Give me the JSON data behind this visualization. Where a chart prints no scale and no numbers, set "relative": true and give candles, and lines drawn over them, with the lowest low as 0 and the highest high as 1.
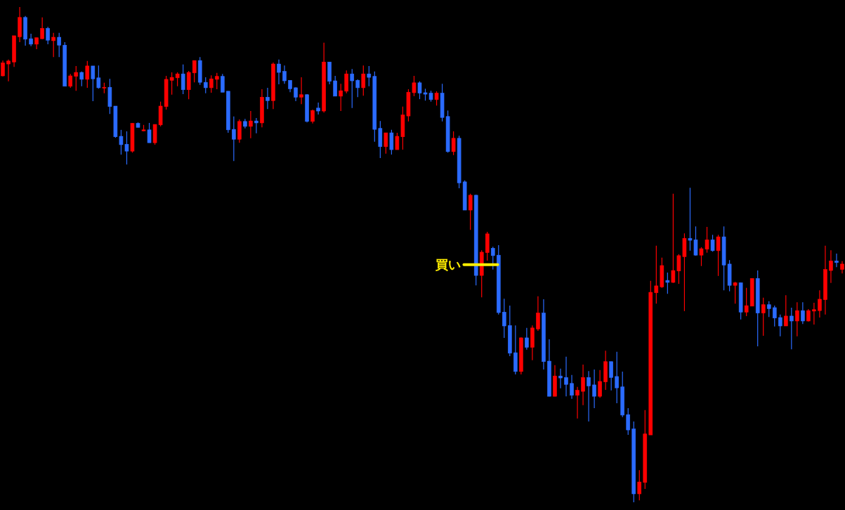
{
  "chart_data": {
    "type": "candlestick",
    "relative": true,
    "categories": [
      null,
      null,
      null,
      null,
      null,
      null,
      null,
      null,
      null,
      null,
      null,
      null,
      null,
      null,
      null,
      null,
      null,
      null,
      null,
      null,
      null,
      null,
      null,
      null,
      null,
      null,
      null,
      null,
      null,
      null,
      null,
      null,
      null,
      null,
      null,
      null,
      null,
      null,
      null,
      null,
      null,
      null,
      null,
      null,
      null,
      null,
      null,
      null,
      null,
      null,
      null,
      null,
      null,
      null,
      null,
      null,
      null,
      null,
      null,
      null,
      null,
      null,
      null,
      null,
      null,
      null,
      null,
      null,
      null,
      null,
      null,
      null,
      null,
      null,
      null,
      null,
      null,
      null,
      null,
      null,
      null,
      null,
      null,
      null,
      null,
      null,
      null,
      null,
      null,
      null,
      null,
      null,
      null,
      null,
      null,
      null,
      null,
      null,
      null,
      null,
      null,
      null,
      null,
      null,
      null,
      null,
      null,
      null,
      null,
      null,
      null,
      null,
      null,
      null,
      null,
      null,
      null,
      null,
      null,
      null,
      null,
      null,
      null,
      null,
      null,
      null,
      null,
      null,
      null,
      null,
      null,
      null,
      null,
      null,
      null,
      null,
      null,
      null,
      null,
      null,
      null,
      null,
      null,
      null,
      null,
      null,
      null,
      null,
      null,
      null
    ],
    "ohlc": [
      [
        0.861,
        0.892,
        0.86,
        0.887
      ],
      [
        0.885,
        0.894,
        0.85,
        0.891
      ],
      [
        0.889,
        0.942,
        0.879,
        0.942
      ],
      [
        0.94,
        1,
        0.929,
        0.979
      ],
      [
        0.979,
        0.982,
        0.922,
        0.935
      ],
      [
        0.936,
        0.946,
        0.921,
        0.925
      ],
      [
        0.925,
        0.938,
        0.915,
        0.938
      ],
      [
        0.936,
        0.979,
        0.935,
        0.957
      ],
      [
        0.957,
        0.96,
        0.925,
        0.933
      ],
      [
        0.932,
        0.948,
        0.899,
        0.939
      ],
      [
        0.939,
        0.948,
        0.899,
        0.923
      ],
      [
        0.923,
        0.929,
        0.84,
        0.84
      ],
      [
        0.84,
        0.865,
        0.837,
        0.861
      ],
      [
        0.86,
        0.881,
        0.831,
        0.868
      ],
      [
        0.868,
        0.87,
        0.84,
        0.854
      ],
      [
        0.854,
        0.891,
        0.837,
        0.881
      ],
      [
        0.881,
        0.881,
        0.81,
        0.855
      ],
      [
        0.857,
        0.882,
        0.835,
        0.837
      ],
      [
        0.837,
        0.847,
        0.826,
        0.838
      ],
      [
        0.838,
        0.855,
        0.784,
        0.799
      ],
      [
        0.8,
        0.8,
        0.736,
        0.738
      ],
      [
        0.739,
        0.752,
        0.702,
        0.722
      ],
      [
        0.723,
        0.749,
        0.682,
        0.709
      ],
      [
        0.709,
        0.766,
        0.706,
        0.765
      ],
      [
        0.765,
        0.767,
        0.757,
        0.757
      ],
      [
        0.75,
        0.762,
        0.749,
        0.752
      ],
      [
        0.752,
        0.766,
        0.726,
        0.726
      ],
      [
        0.726,
        0.763,
        0.722,
        0.763
      ],
      [
        0.762,
        0.809,
        0.759,
        0.8
      ],
      [
        0.799,
        0.861,
        0.793,
        0.854
      ],
      [
        0.852,
        0.868,
        0.823,
        0.858
      ],
      [
        0.857,
        0.868,
        0.84,
        0.865
      ],
      [
        0.865,
        0.884,
        0.824,
        0.833
      ],
      [
        0.833,
        0.871,
        0.814,
        0.868
      ],
      [
        0.867,
        0.892,
        0.848,
        0.892
      ],
      [
        0.892,
        0.899,
        0.843,
        0.848
      ],
      [
        0.848,
        0.858,
        0.826,
        0.837
      ],
      [
        0.837,
        0.862,
        0.827,
        0.855
      ],
      [
        0.854,
        0.867,
        0.834,
        0.86
      ],
      [
        0.86,
        0.865,
        0.828,
        0.828
      ],
      [
        0.83,
        0.83,
        0.746,
        0.752
      ],
      [
        0.753,
        0.779,
        0.689,
        0.733
      ],
      [
        0.733,
        0.773,
        0.726,
        0.769
      ],
      [
        0.769,
        0.774,
        0.755,
        0.759
      ],
      [
        0.759,
        0.79,
        0.735,
        0.77
      ],
      [
        0.77,
        0.776,
        0.745,
        0.766
      ],
      [
        0.766,
        0.834,
        0.757,
        0.818
      ],
      [
        0.818,
        0.837,
        0.794,
        0.811
      ],
      [
        0.811,
        0.888,
        0.794,
        0.885
      ],
      [
        0.885,
        0.894,
        0.844,
        0.868
      ],
      [
        0.87,
        0.882,
        0.845,
        0.851
      ],
      [
        0.852,
        0.852,
        0.828,
        0.835
      ],
      [
        0.837,
        0.838,
        0.81,
        0.818
      ],
      [
        0.818,
        0.858,
        0.804,
        0.823
      ],
      [
        0.823,
        0.824,
        0.767,
        0.769
      ],
      [
        0.769,
        0.793,
        0.765,
        0.791
      ],
      [
        0.796,
        0.807,
        0.783,
        0.79
      ],
      [
        0.79,
        0.928,
        0.787,
        0.889
      ],
      [
        0.889,
        0.889,
        0.844,
        0.85
      ],
      [
        0.851,
        0.861,
        0.82,
        0.82
      ],
      [
        0.82,
        0.845,
        0.79,
        0.831
      ],
      [
        0.83,
        0.872,
        0.826,
        0.865
      ],
      [
        0.865,
        0.875,
        0.796,
        0.851
      ],
      [
        0.852,
        0.854,
        0.818,
        0.837
      ],
      [
        0.837,
        0.882,
        0.821,
        0.865
      ],
      [
        0.865,
        0.881,
        0.84,
        0.858
      ],
      [
        0.86,
        0.87,
        0.728,
        0.753
      ],
      [
        0.755,
        0.77,
        0.695,
        0.718
      ],
      [
        0.718,
        0.746,
        0.704,
        0.746
      ],
      [
        0.746,
        0.752,
        0.702,
        0.712
      ],
      [
        0.712,
        0.746,
        0.712,
        0.739
      ],
      [
        0.738,
        0.799,
        0.712,
        0.782
      ],
      [
        0.78,
        0.834,
        0.769,
        0.828
      ],
      [
        0.827,
        0.861,
        0.82,
        0.847
      ],
      [
        0.847,
        0.85,
        0.814,
        0.826
      ],
      [
        0.827,
        0.835,
        0.811,
        0.824
      ],
      [
        0.826,
        0.831,
        0.809,
        0.813
      ],
      [
        0.813,
        0.83,
        0.801,
        0.826
      ],
      [
        0.826,
        0.845,
        0.769,
        0.777
      ],
      [
        0.779,
        0.791,
        0.706,
        0.708
      ],
      [
        0.708,
        0.749,
        0.701,
        0.735
      ],
      [
        0.735,
        0.74,
        0.634,
        0.645
      ],
      [
        0.647,
        0.65,
        0.59,
        0.59
      ],
      [
        0.59,
        0.623,
        0.55,
        0.62
      ],
      [
        0.62,
        0.621,
        0.438,
        0.458
      ],
      [
        0.458,
        0.509,
        0.414,
        0.505
      ],
      [
        0.504,
        0.546,
        0.488,
        0.542
      ],
      [
        0.513,
        0.516,
        0.47,
        0.498
      ],
      [
        0.499,
        0.519,
        0.379,
        0.383
      ],
      [
        0.384,
        0.411,
        0.332,
        0.356
      ],
      [
        0.357,
        0.397,
        0.295,
        0.301
      ],
      [
        0.302,
        0.357,
        0.258,
        0.264
      ],
      [
        0.264,
        0.333,
        0.258,
        0.332
      ],
      [
        0.332,
        0.352,
        0.308,
        0.313
      ],
      [
        0.313,
        0.357,
        0.287,
        0.352
      ],
      [
        0.35,
        0.416,
        0.346,
        0.382
      ],
      [
        0.382,
        0.41,
        0.268,
        0.284
      ],
      [
        0.285,
        0.329,
        0.214,
        0.214
      ],
      [
        0.214,
        0.277,
        0.214,
        0.255
      ],
      [
        0.255,
        0.27,
        0.23,
        0.251
      ],
      [
        0.252,
        0.294,
        0.214,
        0.238
      ],
      [
        0.24,
        0.257,
        0.209,
        0.216
      ],
      [
        0.216,
        0.233,
        0.169,
        0.226
      ],
      [
        0.224,
        0.278,
        0.196,
        0.252
      ],
      [
        0.252,
        0.265,
        0.163,
        0.235
      ],
      [
        0.237,
        0.268,
        0.19,
        0.214
      ],
      [
        0.214,
        0.267,
        0.211,
        0.244
      ],
      [
        0.243,
        0.306,
        0.227,
        0.284
      ],
      [
        0.284,
        0.284,
        0.226,
        0.252
      ],
      [
        0.254,
        0.304,
        0.2,
        0.231
      ],
      [
        0.233,
        0.264,
        0.172,
        0.176
      ],
      [
        0.177,
        0.19,
        0.136,
        0.146
      ],
      [
        0.148,
        0.163,
        0,
        0.017
      ],
      [
        0.017,
        0.065,
        0.004,
        0.041
      ],
      [
        0.04,
        0.186,
        0.027,
        0.138
      ],
      [
        0.136,
        0.447,
        0.136,
        0.424
      ],
      [
        0.423,
        0.518,
        0.401,
        0.437
      ],
      [
        0.435,
        0.494,
        0.433,
        0.478
      ],
      [
        0.448,
        0.464,
        0.421,
        0.444
      ],
      [
        0.444,
        0.623,
        0.443,
        0.468
      ],
      [
        0.467,
        0.501,
        0.441,
        0.498
      ],
      [
        0.496,
        0.543,
        0.386,
        0.533
      ],
      [
        0.533,
        0.635,
        0.508,
        0.529
      ],
      [
        0.53,
        0.557,
        0.498,
        0.499
      ],
      [
        0.499,
        0.515,
        0.477,
        0.512
      ],
      [
        0.511,
        0.556,
        0.504,
        0.53
      ],
      [
        0.53,
        0.54,
        0.506,
        0.508
      ],
      [
        0.508,
        0.54,
        0.457,
        0.536
      ],
      [
        0.536,
        0.557,
        0.428,
        0.479
      ],
      [
        0.481,
        0.489,
        0.426,
        0.438
      ],
      [
        0.438,
        0.445,
        0.401,
        0.443
      ],
      [
        0.443,
        0.444,
        0.369,
        0.384
      ],
      [
        0.384,
        0.433,
        0.376,
        0.397
      ],
      [
        0.396,
        0.452,
        0.396,
        0.452
      ],
      [
        0.452,
        0.468,
        0.315,
        0.382
      ],
      [
        0.382,
        0.413,
        0.336,
        0.399
      ],
      [
        0.399,
        0.406,
        0.374,
        0.391
      ],
      [
        0.393,
        0.397,
        0.355,
        0.372
      ],
      [
        0.373,
        0.379,
        0.335,
        0.356
      ],
      [
        0.356,
        0.418,
        0.356,
        0.376
      ],
      [
        0.376,
        0.393,
        0.309,
        0.366
      ],
      [
        0.366,
        0.404,
        0.335,
        0.387
      ],
      [
        0.387,
        0.404,
        0.36,
        0.366
      ],
      [
        0.366,
        0.39,
        0.365,
        0.387
      ],
      [
        0.386,
        0.403,
        0.359,
        0.389
      ],
      [
        0.387,
        0.428,
        0.373,
        0.41
      ],
      [
        0.409,
        0.518,
        0.379,
        0.47
      ],
      [
        0.468,
        0.509,
        0.443,
        0.487
      ],
      [
        0.487,
        0.502,
        0.475,
        0.484
      ],
      [
        0.47,
        0.487,
        0.462,
        0.481
      ]
    ],
    "colors": [
      "#ff0000",
      "#ff0000",
      "#ff0000",
      "#ff0000",
      "#2b6bff",
      "#2b6bff",
      "#ff0000",
      "#ff0000",
      "#2b6bff",
      "#ff0000",
      "#2b6bff",
      "#2b6bff",
      "#ff0000",
      "#ff0000",
      "#2b6bff",
      "#ff0000",
      "#2b6bff",
      "#2b6bff",
      "#ff0000",
      "#2b6bff",
      "#2b6bff",
      "#2b6bff",
      "#2b6bff",
      "#ff0000",
      "#2b6bff",
      "#ff0000",
      "#2b6bff",
      "#ff0000",
      "#ff0000",
      "#ff0000",
      "#ff0000",
      "#ff0000",
      "#2b6bff",
      "#ff0000",
      "#ff0000",
      "#2b6bff",
      "#2b6bff",
      "#ff0000",
      "#ff0000",
      "#2b6bff",
      "#2b6bff",
      "#2b6bff",
      "#ff0000",
      "#2b6bff",
      "#ff0000",
      "#2b6bff",
      "#ff0000",
      "#2b6bff",
      "#ff0000",
      "#2b6bff",
      "#2b6bff",
      "#2b6bff",
      "#2b6bff",
      "#ff0000",
      "#2b6bff",
      "#ff0000",
      "#2b6bff",
      "#ff0000",
      "#2b6bff",
      "#2b6bff",
      "#ff0000",
      "#ff0000",
      "#2b6bff",
      "#2b6bff",
      "#ff0000",
      "#2b6bff",
      "#2b6bff",
      "#2b6bff",
      "#ff0000",
      "#2b6bff",
      "#ff0000",
      "#ff0000",
      "#ff0000",
      "#ff0000",
      "#2b6bff",
      "#2b6bff",
      "#2b6bff",
      "#ff0000",
      "#2b6bff",
      "#2b6bff",
      "#ff0000",
      "#2b6bff",
      "#2b6bff",
      "#ff0000",
      "#2b6bff",
      "#ff0000",
      "#ff0000",
      "#2b6bff",
      "#2b6bff",
      "#2b6bff",
      "#2b6bff",
      "#2b6bff",
      "#ff0000",
      "#2b6bff",
      "#ff0000",
      "#ff0000",
      "#2b6bff",
      "#2b6bff",
      "#ff0000",
      "#2b6bff",
      "#2b6bff",
      "#2b6bff",
      "#ff0000",
      "#ff0000",
      "#2b6bff",
      "#2b6bff",
      "#ff0000",
      "#ff0000",
      "#2b6bff",
      "#2b6bff",
      "#2b6bff",
      "#2b6bff",
      "#2b6bff",
      "#ff0000",
      "#ff0000",
      "#ff0000",
      "#ff0000",
      "#ff0000",
      "#2b6bff",
      "#ff0000",
      "#ff0000",
      "#ff0000",
      "#2b6bff",
      "#2b6bff",
      "#ff0000",
      "#ff0000",
      "#2b6bff",
      "#ff0000",
      "#2b6bff",
      "#2b6bff",
      "#ff0000",
      "#2b6bff",
      "#ff0000",
      "#ff0000",
      "#2b6bff",
      "#ff0000",
      "#2b6bff",
      "#2b6bff",
      "#2b6bff",
      "#ff0000",
      "#2b6bff",
      "#ff0000",
      "#2b6bff",
      "#ff0000",
      "#ff0000",
      "#ff0000",
      "#ff0000",
      "#ff0000",
      "#2b6bff",
      "#ff0000"
    ],
    "annotations": [
      "買い"
    ]
  }
}
